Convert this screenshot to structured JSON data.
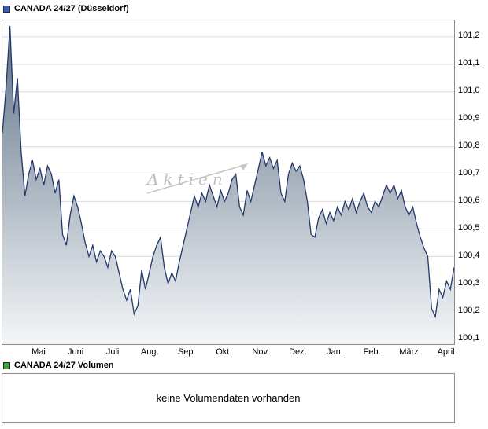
{
  "legend": {
    "price": {
      "label": "CANADA 24/27 (Düsseldorf)",
      "color": "#3a5fc0"
    },
    "volume": {
      "label": "CANADA 24/27 Volumen",
      "color": "#3aa53a"
    }
  },
  "watermark": {
    "text": "Aktien"
  },
  "volume_panel": {
    "message": "keine Volumendaten vorhanden"
  },
  "chart_data": {
    "type": "area",
    "title": "CANADA 24/27 (Düsseldorf)",
    "xlabel": "",
    "ylabel": "",
    "x_labels": [
      "Mai",
      "Juni",
      "Juli",
      "Aug.",
      "Sep.",
      "Okt.",
      "Nov.",
      "Dez.",
      "Jan.",
      "Feb.",
      "März",
      "April"
    ],
    "y_ticks": [
      101.2,
      101.1,
      101.0,
      100.9,
      100.8,
      100.7,
      100.6,
      100.5,
      100.4,
      100.3,
      100.2,
      100.1
    ],
    "ylim": [
      100.08,
      101.26
    ],
    "grid": true,
    "legend_position": "top-left",
    "values": [
      100.85,
      101.02,
      101.24,
      100.92,
      101.05,
      100.78,
      100.62,
      100.7,
      100.75,
      100.68,
      100.72,
      100.66,
      100.73,
      100.7,
      100.63,
      100.68,
      100.48,
      100.44,
      100.55,
      100.62,
      100.58,
      100.52,
      100.45,
      100.4,
      100.44,
      100.38,
      100.42,
      100.4,
      100.36,
      100.42,
      100.4,
      100.34,
      100.28,
      100.24,
      100.28,
      100.19,
      100.22,
      100.35,
      100.28,
      100.34,
      100.4,
      100.44,
      100.47,
      100.36,
      100.3,
      100.34,
      100.31,
      100.38,
      100.44,
      100.5,
      100.56,
      100.62,
      100.58,
      100.63,
      100.6,
      100.66,
      100.62,
      100.58,
      100.64,
      100.6,
      100.63,
      100.68,
      100.7,
      100.58,
      100.55,
      100.64,
      100.6,
      100.66,
      100.72,
      100.78,
      100.73,
      100.76,
      100.72,
      100.75,
      100.63,
      100.6,
      100.7,
      100.74,
      100.71,
      100.73,
      100.68,
      100.6,
      100.48,
      100.47,
      100.54,
      100.57,
      100.52,
      100.56,
      100.53,
      100.58,
      100.55,
      100.6,
      100.57,
      100.61,
      100.56,
      100.6,
      100.63,
      100.58,
      100.56,
      100.6,
      100.58,
      100.62,
      100.66,
      100.63,
      100.66,
      100.61,
      100.64,
      100.58,
      100.55,
      100.58,
      100.52,
      100.47,
      100.43,
      100.4,
      100.21,
      100.18,
      100.28,
      100.25,
      100.31,
      100.28,
      100.36
    ],
    "line_color": "#22386b",
    "fill_top": "#54687e",
    "fill_bottom": "#f3f5f7",
    "grid_color": "#d9d9d9"
  }
}
